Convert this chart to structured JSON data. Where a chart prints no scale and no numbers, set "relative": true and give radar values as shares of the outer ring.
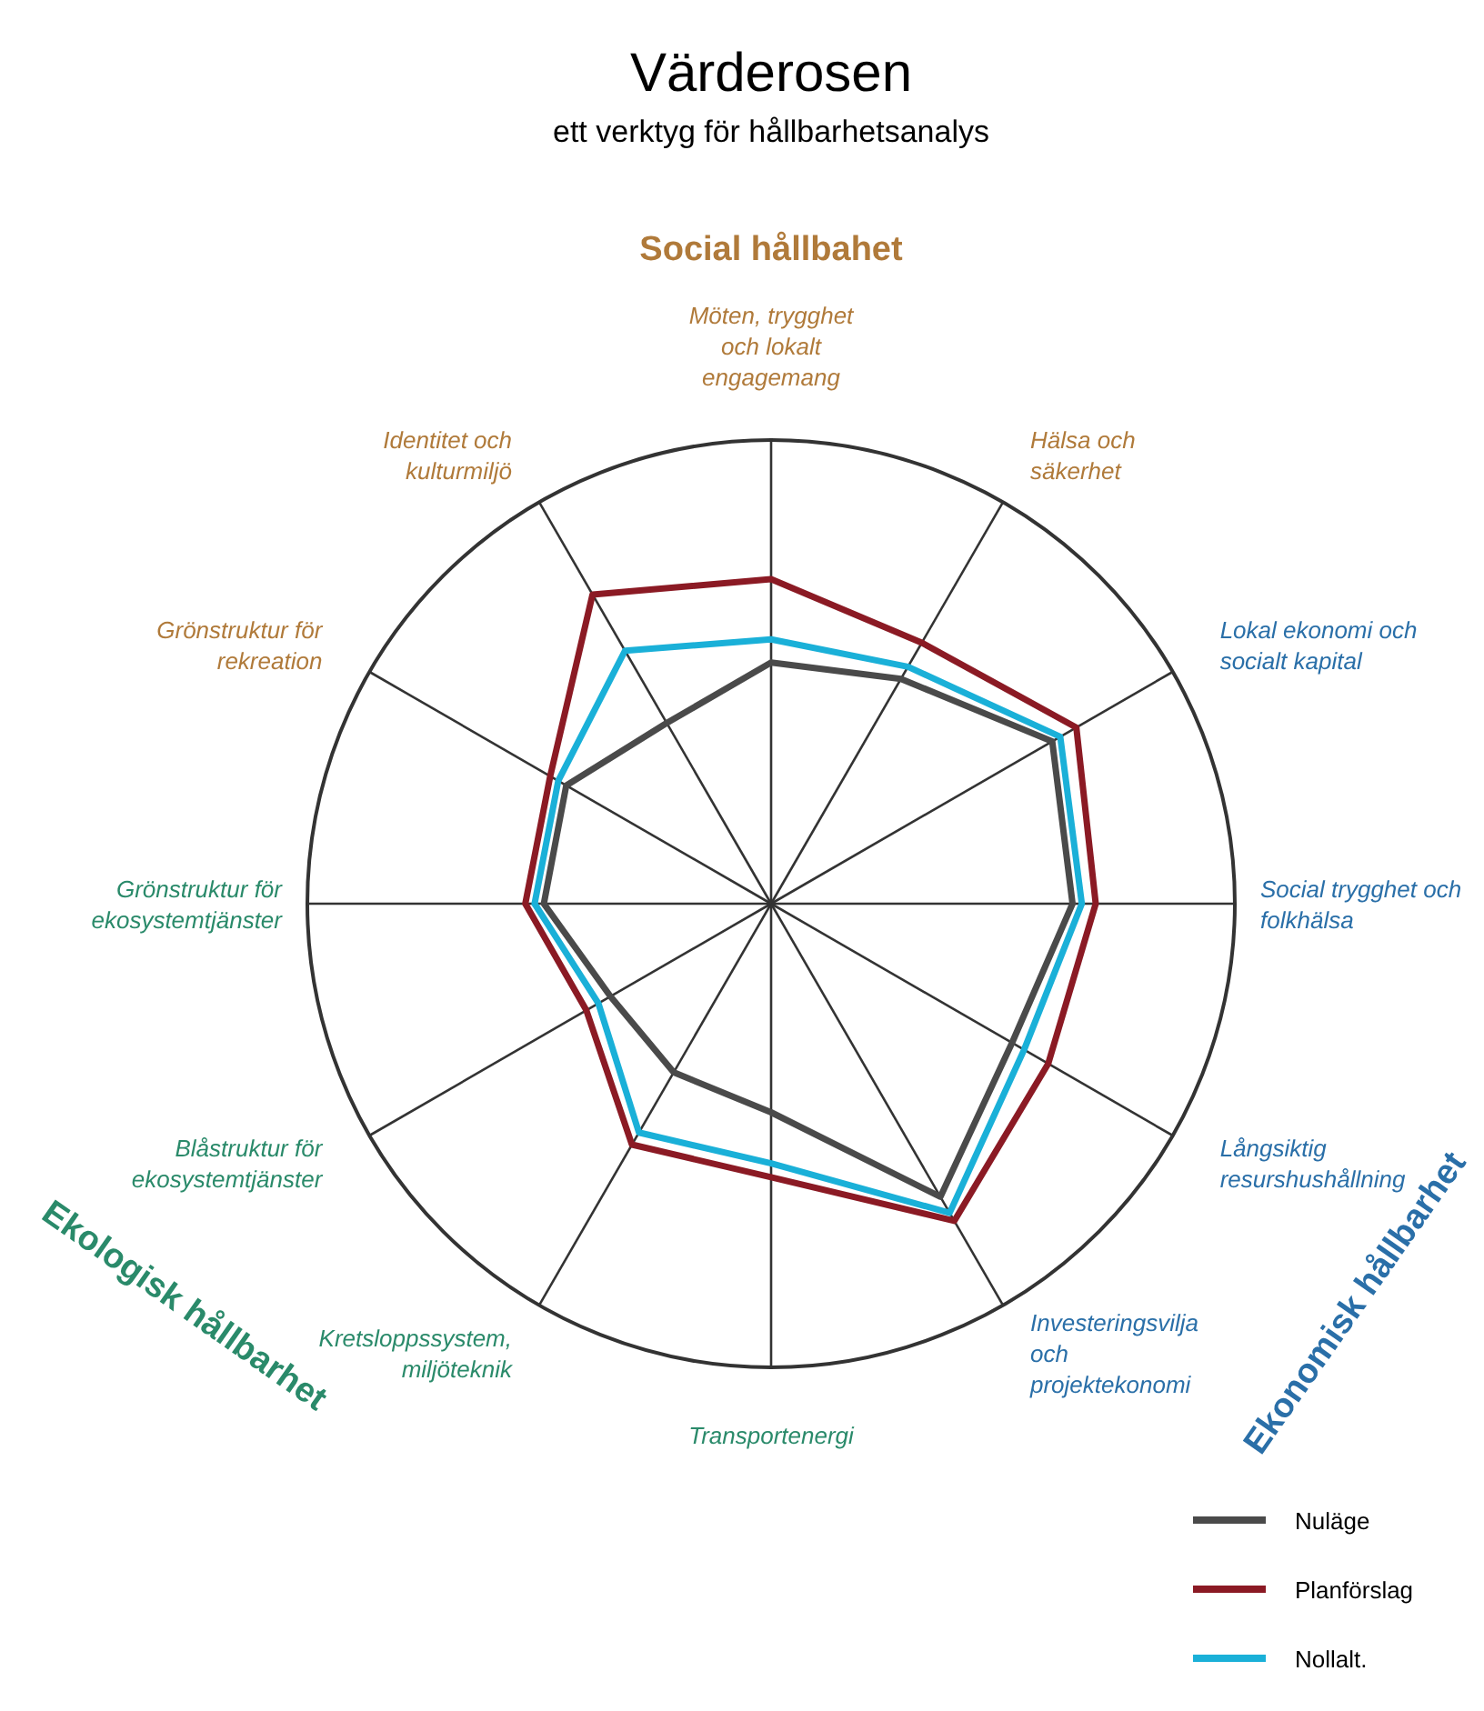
{
  "chart_data": {
    "type": "radar",
    "title": "Värderosen",
    "subtitle": "ett verktyg för hållbarhetsanalys",
    "relative": true,
    "legend": "bottom right",
    "grid": true,
    "categories": [
      "Möten, trygghet och lokalt engagemang",
      "Hälsa och säkerhet",
      "Lokal ekonomi och socialt kapital",
      "Social trygghet och folkhälsa",
      "Långsiktig resurshushållning",
      "Investeringsvilja och projektekonomi",
      "Transportenergi",
      "Kretsloppssystem, miljöteknik",
      "Blåstruktur för ekosystemtjänster",
      "Grönstruktur för ekosystemtjänster",
      "Grönstruktur för rekreation",
      "Identitet och kulturmiljö"
    ],
    "series": [
      {
        "name": "Nuläge",
        "color": "#4a4a4a",
        "values": [
          0.52,
          0.56,
          0.7,
          0.65,
          0.6,
          0.73,
          0.45,
          0.42,
          0.4,
          0.49,
          0.51,
          0.45
        ]
      },
      {
        "name": "Planförslag",
        "color": "#8b1a24",
        "values": [
          0.7,
          0.65,
          0.76,
          0.7,
          0.69,
          0.79,
          0.59,
          0.6,
          0.46,
          0.53,
          0.55,
          0.77
        ]
      },
      {
        "name": "Nollalt.",
        "color": "#1ab0d8",
        "values": [
          0.57,
          0.59,
          0.72,
          0.67,
          0.63,
          0.77,
          0.56,
          0.57,
          0.43,
          0.51,
          0.53,
          0.63
        ]
      }
    ],
    "annotations": [
      "Social hållbahet",
      "Ekologisk hållbarhet",
      "Ekonomisk hållbarhet"
    ]
  }
}
